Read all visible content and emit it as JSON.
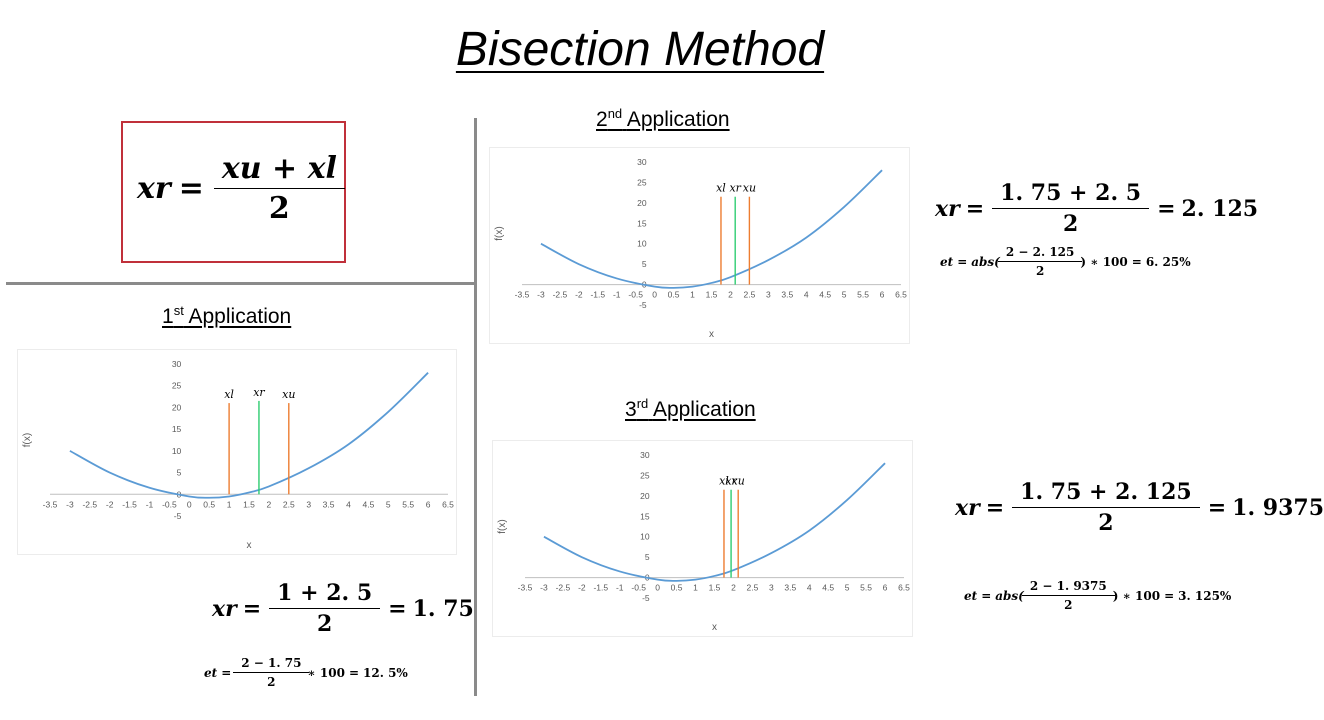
{
  "title": "Bisection Method",
  "main_formula": {
    "lhs": "xr",
    "num": "xu + xl",
    "den": "2"
  },
  "sections": {
    "first": {
      "ord": "1",
      "sup": "st",
      "label": "Application"
    },
    "second": {
      "ord": "2",
      "sup": "nd",
      "label": "Application"
    },
    "third": {
      "ord": "3",
      "sup": "rd",
      "label": "Application"
    }
  },
  "results": {
    "first": {
      "xr": {
        "lhs": "xr",
        "num": "1 + 2. 5",
        "den": "2",
        "result": "1. 75"
      },
      "et": {
        "lhs": "et",
        "num": "2 − 1. 75",
        "den": "2",
        "tail": "∗ 100",
        "result": "12. 5%"
      }
    },
    "second": {
      "xr": {
        "lhs": "xr",
        "num": "1. 75 + 2. 5",
        "den": "2",
        "result": "2. 125"
      },
      "et": {
        "lhs": "et",
        "fn": "abs(",
        "num": "2 − 2. 125",
        "den": "2",
        "tail": ") ∗ 100",
        "result": "6. 25%"
      }
    },
    "third": {
      "xr": {
        "lhs": "xr",
        "num": "1. 75 + 2. 125",
        "den": "2",
        "result": "1. 9375"
      },
      "et": {
        "lhs": "et",
        "fn": "abs(",
        "num": "2 − 1. 9375",
        "den": "2",
        "tail": ") ∗ 100",
        "result": "3. 125%"
      }
    }
  },
  "chart_data": [
    {
      "type": "line",
      "xlabel": "x",
      "ylabel": "f(x)",
      "xlim": [
        -3.5,
        6.5
      ],
      "ylim": [
        -5,
        30
      ],
      "x_ticks": [
        "-3.5",
        "-3",
        "-2.5",
        "-2",
        "-1.5",
        "-1",
        "-0.5",
        "0",
        "0.5",
        "1",
        "1.5",
        "2",
        "2.5",
        "3",
        "3.5",
        "4",
        "4.5",
        "5",
        "5.5",
        "6",
        "6.5"
      ],
      "y_ticks": [
        "-5",
        "0",
        "5",
        "10",
        "15",
        "20",
        "25",
        "30"
      ],
      "curve": {
        "x": [
          -3,
          -2,
          -1,
          0,
          0.5,
          1,
          1.5,
          2,
          3,
          4,
          5,
          6
        ],
        "y": [
          10,
          5,
          1.5,
          -0.5,
          -0.8,
          -0.5,
          0.4,
          1.8,
          6,
          11.5,
          19,
          28
        ]
      },
      "markers": [
        {
          "name": "xl",
          "x": 1,
          "top": 21,
          "color": "#ed7d31"
        },
        {
          "name": "xr",
          "x": 1.75,
          "top": 21.5,
          "color": "#2ecc71"
        },
        {
          "name": "xu",
          "x": 2.5,
          "top": 21,
          "color": "#ed7d31"
        }
      ]
    },
    {
      "type": "line",
      "xlabel": "x",
      "ylabel": "f(x)",
      "xlim": [
        -3.5,
        6.5
      ],
      "ylim": [
        -5,
        30
      ],
      "x_ticks": [
        "-3.5",
        "-3",
        "-2.5",
        "-2",
        "-1.5",
        "-1",
        "-0.5",
        "0",
        "0.5",
        "1",
        "1.5",
        "2",
        "2.5",
        "3",
        "3.5",
        "4",
        "4.5",
        "5",
        "5.5",
        "6",
        "6.5"
      ],
      "y_ticks": [
        "-5",
        "0",
        "5",
        "10",
        "15",
        "20",
        "25",
        "30"
      ],
      "curve": {
        "x": [
          -3,
          -2,
          -1,
          0,
          0.5,
          1,
          1.5,
          2,
          3,
          4,
          5,
          6
        ],
        "y": [
          10,
          5,
          1.5,
          -0.5,
          -0.8,
          -0.5,
          0.4,
          1.8,
          6,
          11.5,
          19,
          28
        ]
      },
      "markers": [
        {
          "name": "xl",
          "x": 1.75,
          "top": 21.5,
          "color": "#ed7d31"
        },
        {
          "name": "xr",
          "x": 2.125,
          "top": 21.5,
          "color": "#2ecc71"
        },
        {
          "name": "xu",
          "x": 2.5,
          "top": 21.5,
          "color": "#ed7d31"
        }
      ]
    },
    {
      "type": "line",
      "xlabel": "x",
      "ylabel": "f(x)",
      "xlim": [
        -3.5,
        6.5
      ],
      "ylim": [
        -5,
        30
      ],
      "x_ticks": [
        "-3.5",
        "-3",
        "-2.5",
        "-2",
        "-1.5",
        "-1",
        "-0.5",
        "0",
        "0.5",
        "1",
        "1.5",
        "2",
        "2.5",
        "3",
        "3.5",
        "4",
        "4.5",
        "5",
        "5.5",
        "6",
        "6.5"
      ],
      "y_ticks": [
        "-5",
        "0",
        "5",
        "10",
        "15",
        "20",
        "25",
        "30"
      ],
      "curve": {
        "x": [
          -3,
          -2,
          -1,
          0,
          0.5,
          1,
          1.5,
          2,
          3,
          4,
          5,
          6
        ],
        "y": [
          10,
          5,
          1.5,
          -0.5,
          -0.8,
          -0.5,
          0.4,
          1.8,
          6,
          11.5,
          19,
          28
        ]
      },
      "markers": [
        {
          "name": "xl",
          "x": 1.75,
          "top": 21.5,
          "color": "#ed7d31"
        },
        {
          "name": "xr",
          "x": 1.9375,
          "top": 21.5,
          "color": "#2ecc71"
        },
        {
          "name": "xu",
          "x": 2.125,
          "top": 21.5,
          "color": "#ed7d31"
        }
      ]
    }
  ]
}
